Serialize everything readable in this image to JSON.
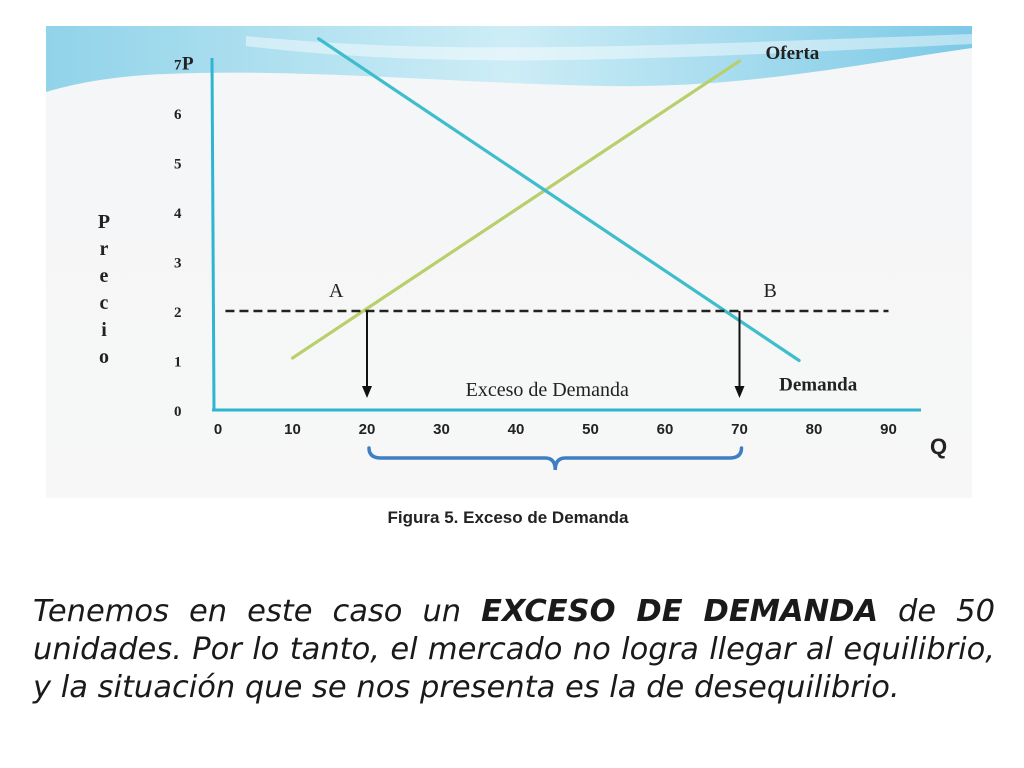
{
  "colors": {
    "axis": "#2fb5cf",
    "supply": "#b9cf6b",
    "demand": "#3ebdcc",
    "banner": "#8fd3ea",
    "brace": "#3e7fc4",
    "dashed": "#222222",
    "panel_bg": "#f6f6f6"
  },
  "chart_data": {
    "type": "line",
    "axis_origin_label": "0",
    "x_ticks": [
      0,
      10,
      20,
      30,
      40,
      50,
      60,
      70,
      80,
      90
    ],
    "x_tick_labels": [
      "0",
      "10",
      "20",
      "30",
      "40",
      "50",
      "60",
      "70",
      "80",
      "90"
    ],
    "y_ticks": [
      0,
      1,
      2,
      3,
      4,
      5,
      6,
      7
    ],
    "y_tick_labels": [
      "0",
      "1",
      "2",
      "3",
      "4",
      "5",
      "6",
      "7"
    ],
    "xlim": [
      0,
      94
    ],
    "ylim": [
      0,
      7.6
    ],
    "y_axis_top_label": "P",
    "x_axis_end_label": "Q",
    "ylabel_vertical": "Precio",
    "series": [
      {
        "name": "Oferta",
        "points": [
          [
            10,
            1.05
          ],
          [
            70,
            7.05
          ]
        ]
      },
      {
        "name": "Demanda",
        "points": [
          [
            13.5,
            7.5
          ],
          [
            78,
            1.0
          ]
        ]
      }
    ],
    "price_line": {
      "value": 2,
      "x_range": [
        1,
        90
      ]
    },
    "points": [
      {
        "label": "A",
        "x": 20,
        "y": 2
      },
      {
        "label": "B",
        "x": 70,
        "y": 2
      }
    ],
    "excess_label": "Exceso de Demanda",
    "excess_range": [
      20,
      70
    ]
  },
  "figure_caption": "Figura 5. Exceso de Demanda",
  "body": {
    "part1": "Tenemos en este caso un ",
    "highlight": "EXCESO DE DEMANDA",
    "part2": " de 50 unidades. Por lo tanto, el mercado no logra llegar al equilibrio, y la situación que se nos presenta es la de desequilibrio."
  }
}
